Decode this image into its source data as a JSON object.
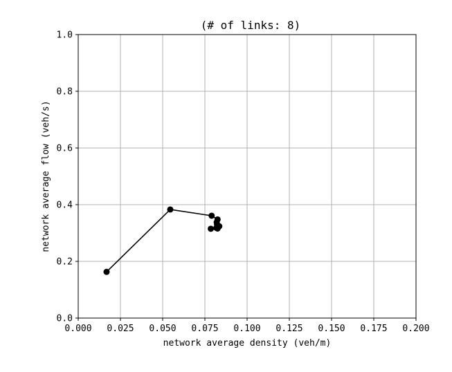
{
  "chart_data": {
    "type": "line",
    "title": "(# of links: 8)",
    "xlabel": "network average density (veh/m)",
    "ylabel": "network average flow (veh/s)",
    "xlim": [
      0.0,
      0.2
    ],
    "ylim": [
      0.0,
      1.0
    ],
    "xticks": [
      "0.000",
      "0.025",
      "0.050",
      "0.075",
      "0.100",
      "0.125",
      "0.150",
      "0.175",
      "0.200"
    ],
    "yticks": [
      "0.0",
      "0.2",
      "0.4",
      "0.6",
      "0.8",
      "1.0"
    ],
    "grid": true,
    "series": [
      {
        "color": "#000000",
        "marker": "circle",
        "x": [
          0.0168,
          0.0545,
          0.079,
          0.0825,
          0.082,
          0.0822,
          0.0835,
          0.0818,
          0.0825,
          0.0785
        ],
        "y": [
          0.163,
          0.383,
          0.361,
          0.348,
          0.338,
          0.33,
          0.324,
          0.318,
          0.316,
          0.315
        ]
      }
    ]
  }
}
